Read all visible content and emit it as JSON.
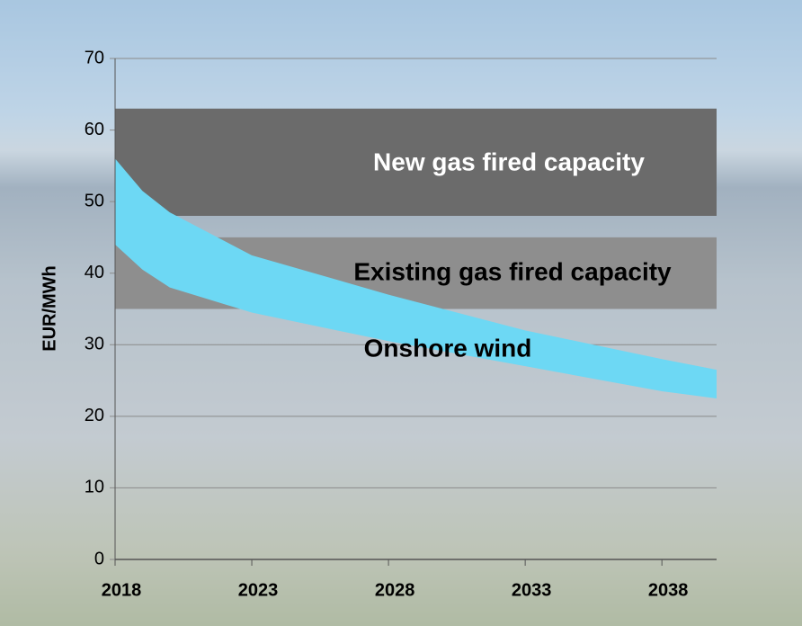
{
  "chart_data": {
    "type": "range-area",
    "y_label": "EUR/MWh",
    "xlim": [
      2018,
      2040
    ],
    "xticks": [
      2018,
      2023,
      2028,
      2033,
      2038
    ],
    "ylim": [
      0,
      70
    ],
    "yticks": [
      0,
      10,
      20,
      30,
      40,
      50,
      60,
      70
    ],
    "grid": true,
    "series": [
      {
        "name": "New gas fired capacity",
        "color": "#6b6b6b",
        "x": [
          2018,
          2040
        ],
        "low": [
          48,
          48
        ],
        "high": [
          63,
          63
        ]
      },
      {
        "name": "Existing gas fired capacity",
        "color": "#8e8e8e",
        "x": [
          2018,
          2040
        ],
        "low": [
          35,
          35
        ],
        "high": [
          45,
          45
        ]
      },
      {
        "name": "Onshore wind",
        "color": "#6dd8f4",
        "x": [
          2018,
          2019,
          2020,
          2023,
          2028,
          2033,
          2038,
          2040
        ],
        "low": [
          44,
          40.5,
          38,
          34.5,
          30.5,
          27,
          23.5,
          22.5
        ],
        "high": [
          56,
          51.5,
          48.5,
          42.5,
          37,
          32,
          28,
          26.5
        ]
      }
    ]
  }
}
